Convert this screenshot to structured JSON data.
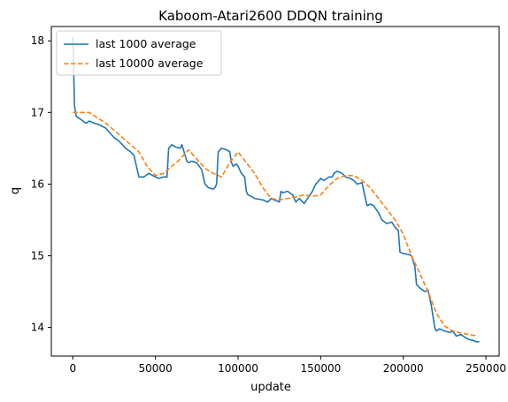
{
  "chart_data": {
    "type": "line",
    "title": "Kaboom-Atari2600 DDQN training",
    "xlabel": "update",
    "ylabel": "q",
    "xlim": [
      -13000,
      258000
    ],
    "ylim": [
      13.6,
      18.2
    ],
    "xticks": [
      0,
      50000,
      100000,
      150000,
      200000,
      250000
    ],
    "xtick_labels": [
      "0",
      "50000",
      "100000",
      "150000",
      "200000",
      "250000"
    ],
    "yticks": [
      14,
      15,
      16,
      17,
      18
    ],
    "ytick_labels": [
      "14",
      "15",
      "16",
      "17",
      "18"
    ],
    "grid": false,
    "legend": "top-left",
    "series": [
      {
        "name": "last 1000 average",
        "color": "#1f77b4",
        "style": "solid",
        "x": [
          0,
          500,
          1000,
          2000,
          3000,
          5000,
          8000,
          10000,
          13000,
          16000,
          20000,
          23000,
          25000,
          28000,
          30000,
          32000,
          35000,
          37000,
          39000,
          40000,
          43000,
          46000,
          50000,
          52000,
          55000,
          57000,
          58000,
          60000,
          62000,
          65000,
          66000,
          68000,
          69000,
          70000,
          72000,
          75000,
          78000,
          80000,
          82000,
          85000,
          86000,
          87000,
          88000,
          90000,
          93000,
          95000,
          96000,
          97000,
          99000,
          100000,
          102000,
          104000,
          105000,
          106000,
          108000,
          110000,
          115000,
          118000,
          120000,
          125000,
          126000,
          127000,
          130000,
          133000,
          135000,
          137000,
          140000,
          145000,
          147000,
          149000,
          150000,
          152000,
          155000,
          157000,
          158000,
          160000,
          163000,
          165000,
          168000,
          170000,
          172000,
          175000,
          178000,
          180000,
          182000,
          185000,
          187000,
          190000,
          193000,
          195000,
          197000,
          198000,
          200000,
          203000,
          205000,
          207000,
          208000,
          210000,
          213000,
          215000,
          217000,
          219000,
          220000,
          222000,
          225000,
          228000,
          230000,
          232000,
          235000,
          238000,
          240000,
          242000,
          244000,
          246000
        ],
        "y": [
          18.05,
          17.6,
          17.1,
          16.95,
          16.93,
          16.9,
          16.85,
          16.88,
          16.85,
          16.83,
          16.78,
          16.7,
          16.65,
          16.6,
          16.55,
          16.5,
          16.45,
          16.4,
          16.2,
          16.1,
          16.1,
          16.15,
          16.1,
          16.08,
          16.1,
          16.1,
          16.5,
          16.55,
          16.52,
          16.5,
          16.55,
          16.4,
          16.32,
          16.3,
          16.32,
          16.3,
          16.2,
          16.0,
          15.95,
          15.93,
          15.95,
          16.0,
          16.45,
          16.5,
          16.48,
          16.45,
          16.3,
          16.25,
          16.28,
          16.25,
          16.15,
          16.1,
          15.9,
          15.85,
          15.83,
          15.8,
          15.78,
          15.75,
          15.8,
          15.75,
          15.9,
          15.88,
          15.9,
          15.85,
          15.75,
          15.8,
          15.73,
          15.9,
          16.0,
          16.05,
          16.08,
          16.05,
          16.1,
          16.1,
          16.15,
          16.18,
          16.15,
          16.1,
          16.08,
          16.05,
          16.0,
          16.02,
          15.7,
          15.72,
          15.7,
          15.6,
          15.5,
          15.45,
          15.47,
          15.4,
          15.35,
          15.05,
          15.03,
          15.02,
          15.0,
          14.85,
          14.6,
          14.55,
          14.5,
          14.52,
          14.3,
          14.0,
          13.95,
          13.98,
          13.95,
          13.93,
          13.95,
          13.88,
          13.9,
          13.85,
          13.83,
          13.82,
          13.8,
          13.8
        ]
      },
      {
        "name": "last 10000 average",
        "color": "#ff7f0e",
        "style": "dashed",
        "x": [
          0,
          10000,
          20000,
          30000,
          40000,
          45000,
          50000,
          55000,
          60000,
          65000,
          70000,
          75000,
          80000,
          85000,
          90000,
          95000,
          100000,
          105000,
          110000,
          115000,
          120000,
          125000,
          130000,
          135000,
          140000,
          145000,
          150000,
          155000,
          160000,
          165000,
          170000,
          175000,
          180000,
          185000,
          190000,
          195000,
          200000,
          205000,
          210000,
          215000,
          220000,
          225000,
          230000,
          235000,
          240000,
          245000
        ],
        "y": [
          17.0,
          17.0,
          16.85,
          16.65,
          16.45,
          16.25,
          16.12,
          16.15,
          16.25,
          16.35,
          16.48,
          16.35,
          16.22,
          16.15,
          16.1,
          16.3,
          16.45,
          16.3,
          16.15,
          15.95,
          15.8,
          15.78,
          15.8,
          15.82,
          15.85,
          15.83,
          15.85,
          15.98,
          16.08,
          16.12,
          16.12,
          16.05,
          15.95,
          15.8,
          15.65,
          15.5,
          15.3,
          15.0,
          14.75,
          14.5,
          14.2,
          14.02,
          13.95,
          13.92,
          13.9,
          13.88
        ]
      }
    ]
  }
}
